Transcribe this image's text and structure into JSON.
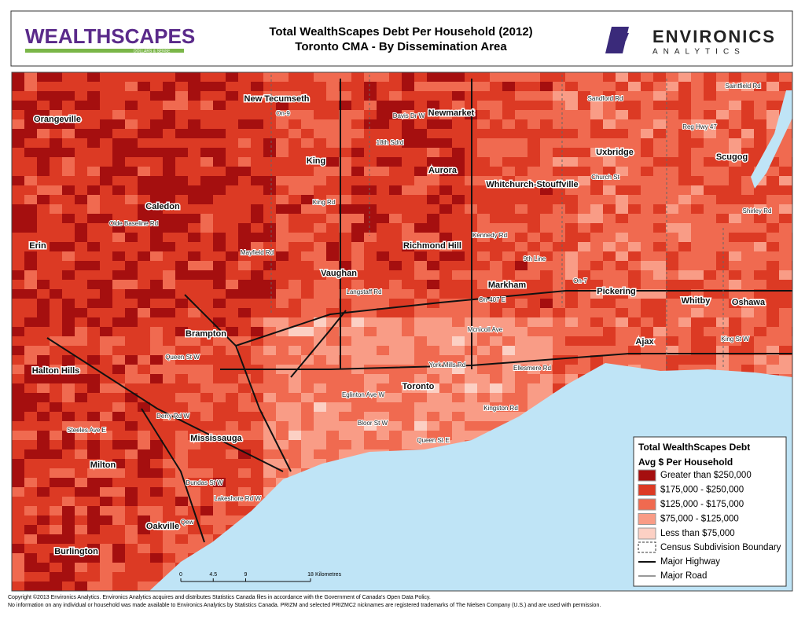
{
  "header": {
    "logo_left": "WEALTHSCAPES",
    "logo_left_tagline": "DOLLARS & SENSE",
    "title": "Total WealthScapes Debt Per Household (2012)",
    "subtitle": "Toronto CMA - By Dissemination Area",
    "logo_right": "ENVIRONICS",
    "logo_right_sub": "ANALYTICS"
  },
  "places": [
    "Orangeville",
    "New Tecumseth",
    "Newmarket",
    "King",
    "Aurora",
    "Uxbridge",
    "Scugog",
    "Whitchurch-Stouffville",
    "Caledon",
    "Erin",
    "Richmond Hill",
    "Vaughan",
    "Markham",
    "Pickering",
    "Whitby",
    "Oshawa",
    "Brampton",
    "Ajax",
    "Halton Hills",
    "Toronto",
    "Mississauga",
    "Milton",
    "Oakville",
    "Burlington"
  ],
  "roads": [
    "On-9",
    "Davis Dr W",
    "18th Sdrd",
    "King Rd",
    "Church St",
    "Shirley Rd",
    "Sandford Rd",
    "Saintfield Rd",
    "Reg Hwy 47",
    "Langstaff Rd",
    "On-407 E",
    "On-7",
    "Mcnicoll Ave",
    "King St W",
    "York Mills Rd",
    "Ellesmere Rd",
    "Eglinton Ave W",
    "Bloor St W",
    "Queen St E",
    "Kingston Rd",
    "Queen St W",
    "Derry Rd W",
    "Steeles Ave E",
    "Dundas St W",
    "Lakeshore Rd W",
    "Qew",
    "Olde Baseline Rd",
    "Mayfield Rd",
    "Kennedy Rd",
    "9th Line"
  ],
  "legend": {
    "title": "Total WealthScapes Debt",
    "subtitle": "Avg $ Per Household",
    "items": [
      {
        "label": "Greater than $250,000",
        "color": "#a50f0f"
      },
      {
        "label": "$175,000 - $250,000",
        "color": "#dc3a24"
      },
      {
        "label": "$125,000 - $175,000",
        "color": "#f06a50"
      },
      {
        "label": "$75,000 - $125,000",
        "color": "#f99c86"
      },
      {
        "label": "Less than $75,000",
        "color": "#fcd0c4"
      }
    ],
    "boundary": "Census Subdivision Boundary",
    "highway": "Major Highway",
    "road": "Major Road"
  },
  "scale": {
    "ticks": [
      0,
      4.5,
      9,
      18
    ],
    "unit": "Kilometres"
  },
  "footer": [
    "Copyright ©2013 Environics Analytics. Environics Analytics acquires and distributes Statistics Canada files in accordance with the Government of Canada's Open Data Policy.",
    "No information on any individual or household was made available to Environics Analytics by Statistics Canada. PRIZM and selected PRIZMC2 nicknames are registered trademarks of The Nielsen Company (U.S.) and are used with permission."
  ]
}
